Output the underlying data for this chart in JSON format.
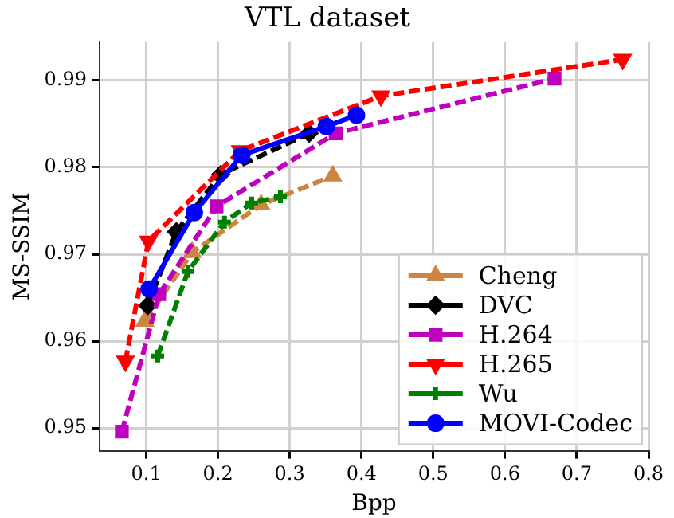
{
  "chart_data": {
    "type": "line",
    "title": "VTL dataset",
    "xlabel": "Bpp",
    "ylabel": "MS-SSIM",
    "xlim": [
      0.035,
      0.8
    ],
    "xticks": [
      0.1,
      0.2,
      0.3,
      0.4,
      0.5,
      0.6,
      0.7,
      0.8
    ],
    "ylim": [
      0.9474,
      0.9944
    ],
    "yticks": [
      0.95,
      0.96,
      0.97,
      0.98,
      0.99
    ],
    "grid": true,
    "legend": "bottom right",
    "series": [
      {
        "name": "Cheng",
        "color": "#cd853f",
        "marker": "triangle",
        "line_style": "dashed",
        "x": [
          0.098,
          0.164,
          0.26,
          0.36
        ],
        "values": [
          0.9623,
          0.9702,
          0.9757,
          0.979
        ]
      },
      {
        "name": "DVC",
        "color": "#000000",
        "marker": "diamond",
        "line_style": "dashed",
        "x": [
          0.102,
          0.142,
          0.204,
          0.327
        ],
        "values": [
          0.9641,
          0.9726,
          0.9792,
          0.9839
        ]
      },
      {
        "name": "H.264",
        "color": "#bf00bf",
        "marker": "square",
        "line_style": "dashed",
        "x": [
          0.066,
          0.118,
          0.198,
          0.364,
          0.669
        ],
        "values": [
          0.9496,
          0.9654,
          0.9755,
          0.9839,
          0.9902
        ]
      },
      {
        "name": "H.265",
        "color": "#ff0000",
        "marker": "triangle_down",
        "line_style": "dashed",
        "x": [
          0.071,
          0.103,
          0.231,
          0.427,
          0.764
        ],
        "values": [
          0.9577,
          0.9715,
          0.9819,
          0.9882,
          0.9924
        ]
      },
      {
        "name": "Wu",
        "color": "#008000",
        "marker": "cross",
        "line_style": "dashed",
        "x": [
          0.116,
          0.158,
          0.209,
          0.247,
          0.287
        ],
        "values": [
          0.9583,
          0.968,
          0.9737,
          0.9759,
          0.9766
        ]
      },
      {
        "name": "MOVI-Codec",
        "color": "#0000ff",
        "marker": "circle",
        "line_style": "solid",
        "x": [
          0.104,
          0.167,
          0.233,
          0.351,
          0.393
        ],
        "values": [
          0.966,
          0.9748,
          0.9814,
          0.9847,
          0.986
        ]
      }
    ]
  }
}
